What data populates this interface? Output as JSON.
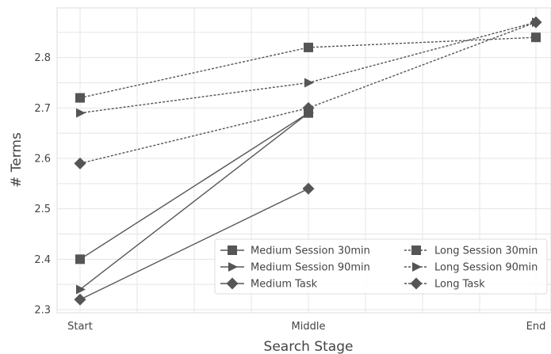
{
  "chart_data": {
    "type": "line",
    "title": "",
    "xlabel": "Search Stage",
    "ylabel": "# Terms",
    "categories": [
      "Start",
      "Middle",
      "End"
    ],
    "ylim": [
      2.3,
      2.9
    ],
    "yticks": [
      "2.3",
      "2.4",
      "2.5",
      "2.6",
      "2.7",
      "2.8"
    ],
    "grid": true,
    "legend_position": "bottom-right",
    "colors": {
      "line": "#555555",
      "grid": "#e5e5e5",
      "frame": "#dddddd"
    },
    "series": [
      {
        "name": "Medium Session 30min",
        "marker": "square",
        "dash": "solid",
        "values": [
          2.4,
          2.69,
          null
        ]
      },
      {
        "name": "Medium Session 90min",
        "marker": "triangle-right",
        "dash": "solid",
        "values": [
          2.34,
          2.69,
          null
        ]
      },
      {
        "name": "Medium Task",
        "marker": "diamond",
        "dash": "solid",
        "values": [
          2.32,
          2.54,
          null
        ]
      },
      {
        "name": "Long Session 30min",
        "marker": "square",
        "dash": "dashed",
        "values": [
          2.72,
          2.82,
          2.84
        ]
      },
      {
        "name": "Long Session 90min",
        "marker": "triangle-right",
        "dash": "dashed",
        "values": [
          2.69,
          2.75,
          2.87
        ]
      },
      {
        "name": "Long Task",
        "marker": "diamond",
        "dash": "dashed",
        "values": [
          2.59,
          2.7,
          2.87
        ]
      }
    ]
  }
}
